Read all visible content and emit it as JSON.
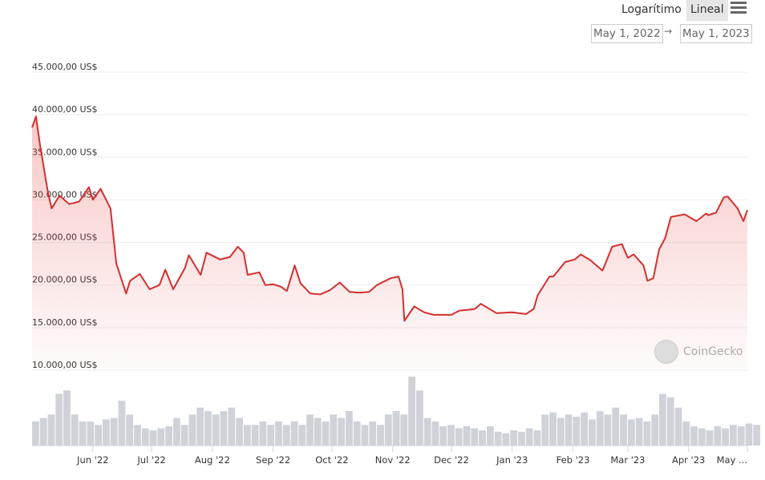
{
  "controls": {
    "log_label": "Logarítimo",
    "linear_label": "Lineal",
    "menu_icon": "hamburger-menu-icon",
    "date_from": "May 1, 2022",
    "date_arrow": "→",
    "date_to": "May 1, 2023"
  },
  "watermark": "CoinGecko",
  "chart_data": {
    "type": "line",
    "title": "",
    "series_color": "#d32f2f",
    "volume_color": "#cfd2d8",
    "ylim": [
      10000,
      45000
    ],
    "y_ticks": [
      45000,
      40000,
      35000,
      30000,
      25000,
      20000,
      15000,
      10000
    ],
    "y_tick_labels": [
      "45.000,00 US$",
      "40.000,00 US$",
      "35.000,00 US$",
      "30.000,00 US$",
      "25.000,00 US$",
      "20.000,00 US$",
      "15.000,00 US$",
      "10.000,00 US$"
    ],
    "x_range_days": [
      0,
      365
    ],
    "x_ticks": [
      31,
      61,
      92,
      123,
      153,
      184,
      214,
      245,
      276,
      304,
      335,
      365
    ],
    "x_tick_labels": [
      "Jun '22",
      "Jul '22",
      "Aug '22",
      "Sep '22",
      "Oct '22",
      "Nov '22",
      "Dec '22",
      "Jan '23",
      "Feb '23",
      "Mar '23",
      "Apr '23",
      "May ..."
    ],
    "price": {
      "name": "Price (US$)",
      "day": [
        0,
        2,
        4,
        8,
        10,
        14,
        19,
        24,
        29,
        31,
        35,
        40,
        43,
        48,
        50,
        55,
        60,
        65,
        68,
        72,
        78,
        80,
        86,
        89,
        96,
        101,
        105,
        108,
        110,
        116,
        119,
        123,
        127,
        130,
        134,
        137,
        142,
        147,
        152,
        157,
        162,
        167,
        172,
        176,
        183,
        187,
        189,
        190,
        195,
        200,
        205,
        214,
        218,
        223,
        226,
        229,
        237,
        245,
        252,
        256,
        258,
        264,
        266,
        272,
        277,
        280,
        285,
        291,
        292,
        296,
        301,
        304,
        307,
        312,
        314,
        317,
        320,
        323,
        326,
        333,
        339,
        344,
        345,
        349,
        353,
        355,
        360,
        363,
        365
      ],
      "values": [
        38500,
        39800,
        36500,
        31000,
        29000,
        30500,
        29500,
        29800,
        31500,
        30000,
        31300,
        29000,
        22500,
        19000,
        20500,
        21300,
        19500,
        20000,
        21800,
        19500,
        22000,
        23500,
        21200,
        23800,
        23000,
        23300,
        24500,
        23800,
        21200,
        21500,
        20000,
        20100,
        19800,
        19300,
        22300,
        20200,
        19000,
        18900,
        19400,
        20300,
        19200,
        19100,
        19200,
        20000,
        20800,
        21000,
        19500,
        15800,
        17500,
        16800,
        16500,
        16500,
        17000,
        17100,
        17200,
        17800,
        16700,
        16800,
        16600,
        17200,
        18800,
        21000,
        21000,
        22700,
        23000,
        23600,
        22900,
        21700,
        22200,
        24500,
        24800,
        23200,
        23600,
        22300,
        20500,
        20800,
        24200,
        25500,
        28000,
        28300,
        27500,
        28400,
        28200,
        28500,
        30300,
        30400,
        29000,
        27500,
        28800
      ]
    },
    "volume": {
      "name": "Volume (relative)",
      "day_step": 4,
      "values": [
        35,
        40,
        45,
        75,
        80,
        45,
        35,
        35,
        30,
        38,
        40,
        65,
        45,
        30,
        25,
        22,
        25,
        28,
        40,
        30,
        45,
        55,
        50,
        45,
        50,
        55,
        40,
        30,
        30,
        35,
        30,
        35,
        30,
        35,
        30,
        45,
        40,
        35,
        45,
        40,
        50,
        35,
        30,
        35,
        30,
        45,
        50,
        45,
        100,
        80,
        40,
        35,
        28,
        30,
        25,
        28,
        25,
        22,
        28,
        20,
        18,
        22,
        20,
        25,
        22,
        45,
        48,
        40,
        45,
        42,
        48,
        38,
        50,
        45,
        55,
        45,
        38,
        40,
        35,
        45,
        75,
        70,
        55,
        35,
        28,
        25,
        22,
        28,
        25,
        30,
        28,
        32,
        30
      ]
    }
  }
}
